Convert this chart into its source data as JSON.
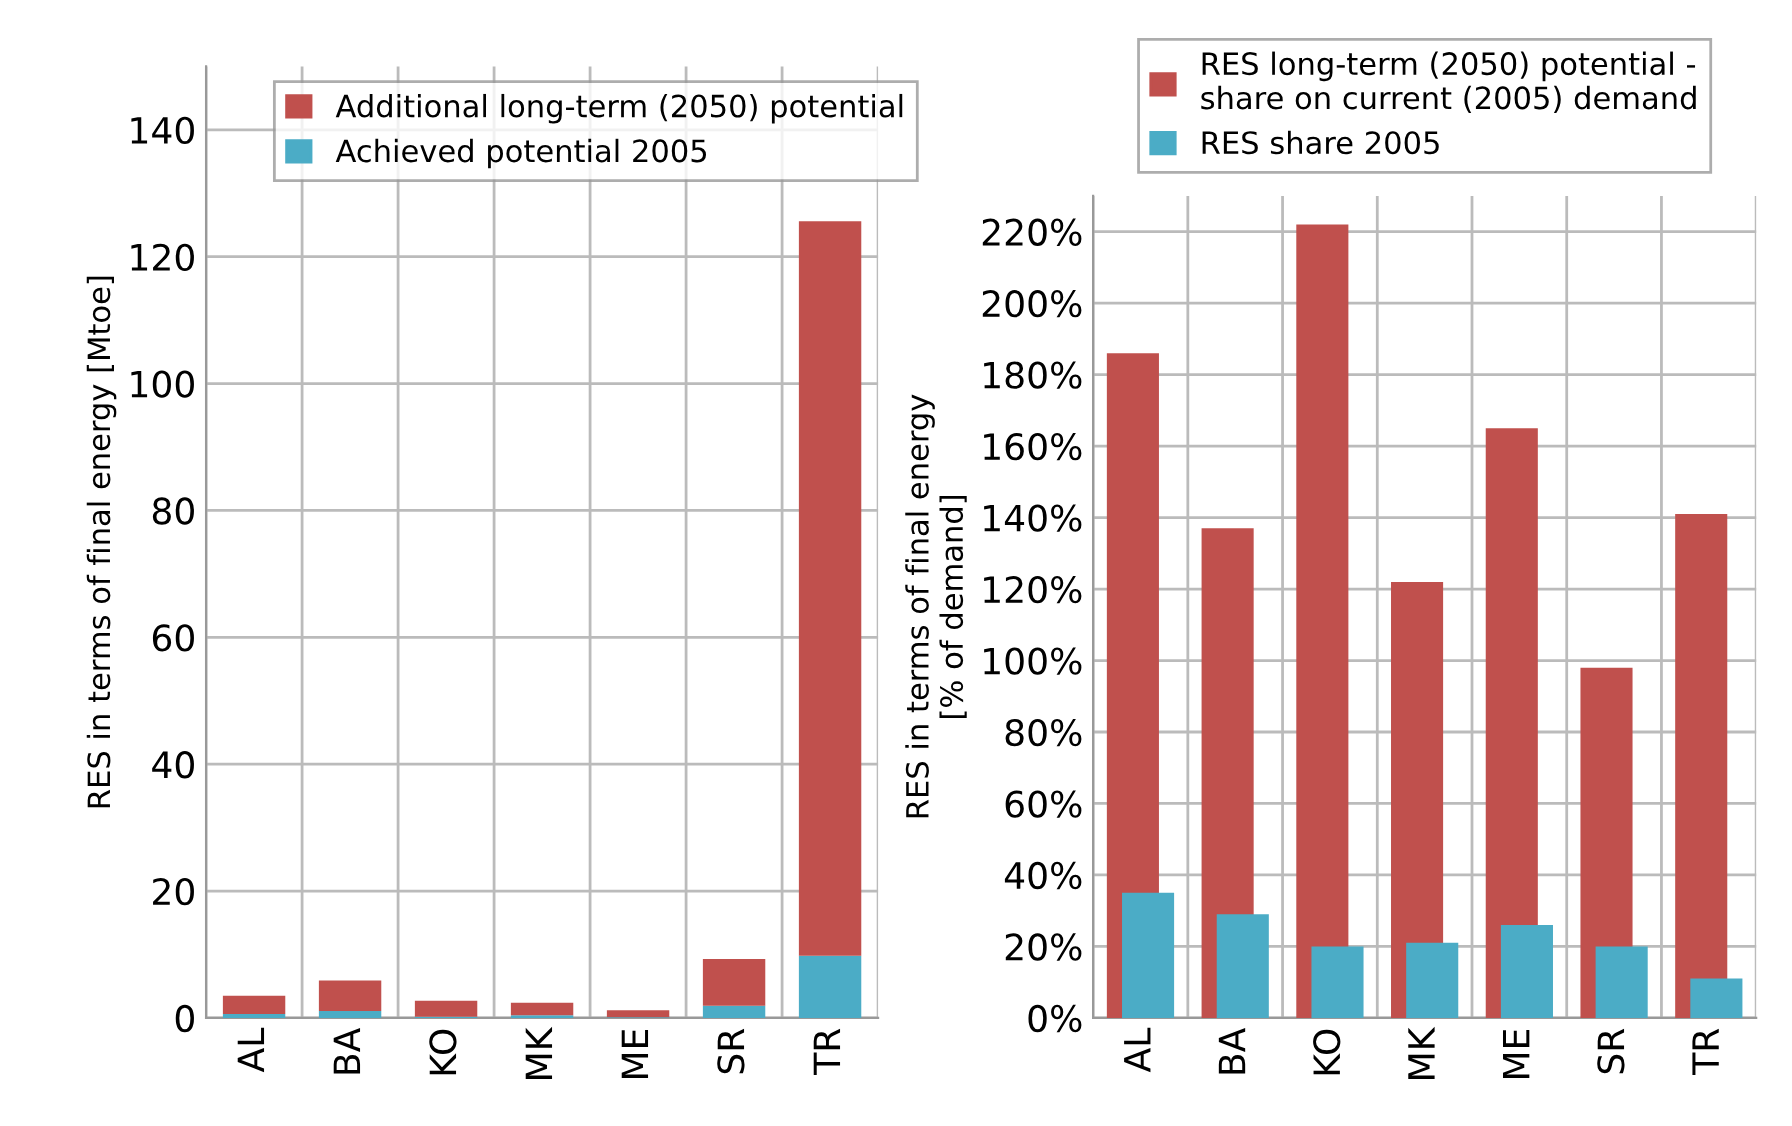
{
  "chart_data": [
    {
      "type": "bar",
      "stacked": true,
      "ylabel": "RES in terms of final energy [Mtoe]",
      "categories": [
        "AL",
        "BA",
        "KO",
        "MK",
        "ME",
        "SR",
        "TR"
      ],
      "series": [
        {
          "name": "Achieved potential 2005",
          "color": "#4bacc6",
          "values": [
            0.6,
            1.1,
            0.2,
            0.4,
            0.1,
            1.9,
            9.8
          ]
        },
        {
          "name": "Additional long-term (2050) potential",
          "color": "#c0504d",
          "values": [
            2.9,
            4.8,
            2.5,
            2.0,
            1.1,
            7.4,
            115.8
          ]
        }
      ],
      "ylim": [
        0,
        150
      ],
      "yticks": [
        0,
        20,
        40,
        60,
        80,
        100,
        120,
        140
      ],
      "grid": true,
      "legend": "top"
    },
    {
      "type": "bar",
      "ylabel": "RES in terms of final energy\n[% of demand]",
      "categories": [
        "AL",
        "BA",
        "KO",
        "MK",
        "ME",
        "SR",
        "TR"
      ],
      "series": [
        {
          "name": "RES long-term (2050) potential -\nshare on current (2005) demand",
          "color": "#c0504d",
          "values": [
            186,
            137,
            222,
            122,
            165,
            98,
            141
          ]
        },
        {
          "name": "RES share 2005",
          "color": "#4bacc6",
          "values": [
            35,
            29,
            20,
            21,
            26,
            20,
            11
          ]
        }
      ],
      "ylim": [
        0,
        230
      ],
      "yticks": [
        {
          "value": 0,
          "label": "0%"
        },
        {
          "value": 20,
          "label": "20%"
        },
        {
          "value": 40,
          "label": "40%"
        },
        {
          "value": 60,
          "label": "60%"
        },
        {
          "value": 80,
          "label": "80%"
        },
        {
          "value": 100,
          "label": "100%"
        },
        {
          "value": 120,
          "label": "120%"
        },
        {
          "value": 140,
          "label": "140%"
        },
        {
          "value": 160,
          "label": "160%"
        },
        {
          "value": 180,
          "label": "180%"
        },
        {
          "value": 200,
          "label": "200%"
        },
        {
          "value": 220,
          "label": "220%"
        }
      ],
      "grid": true,
      "legend": "top"
    }
  ]
}
